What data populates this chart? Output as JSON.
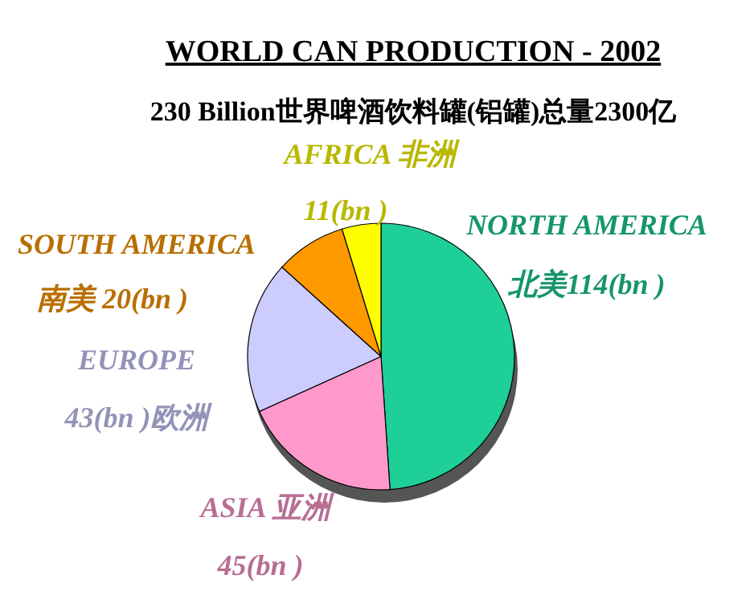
{
  "chart_data": {
    "type": "pie",
    "title": "WORLD CAN PRODUCTION - 2002",
    "subtitle": "230 Billion世界啤酒饮料罐(铝罐)总量2300亿",
    "categories": [
      "NORTH AMERICA",
      "ASIA  亚洲",
      "EUROPE",
      "SOUTH AMERICA",
      "AFRICA  非洲"
    ],
    "values": [
      114,
      45,
      43,
      20,
      11
    ],
    "value_labels": [
      "北美114(bn )",
      "45(bn )",
      "43(bn )欧洲",
      "南美  20(bn )",
      "11(bn )"
    ],
    "colors": [
      "#1fcf98",
      "#ff99cc",
      "#ccccff",
      "#ff9900",
      "#ffff00"
    ]
  }
}
